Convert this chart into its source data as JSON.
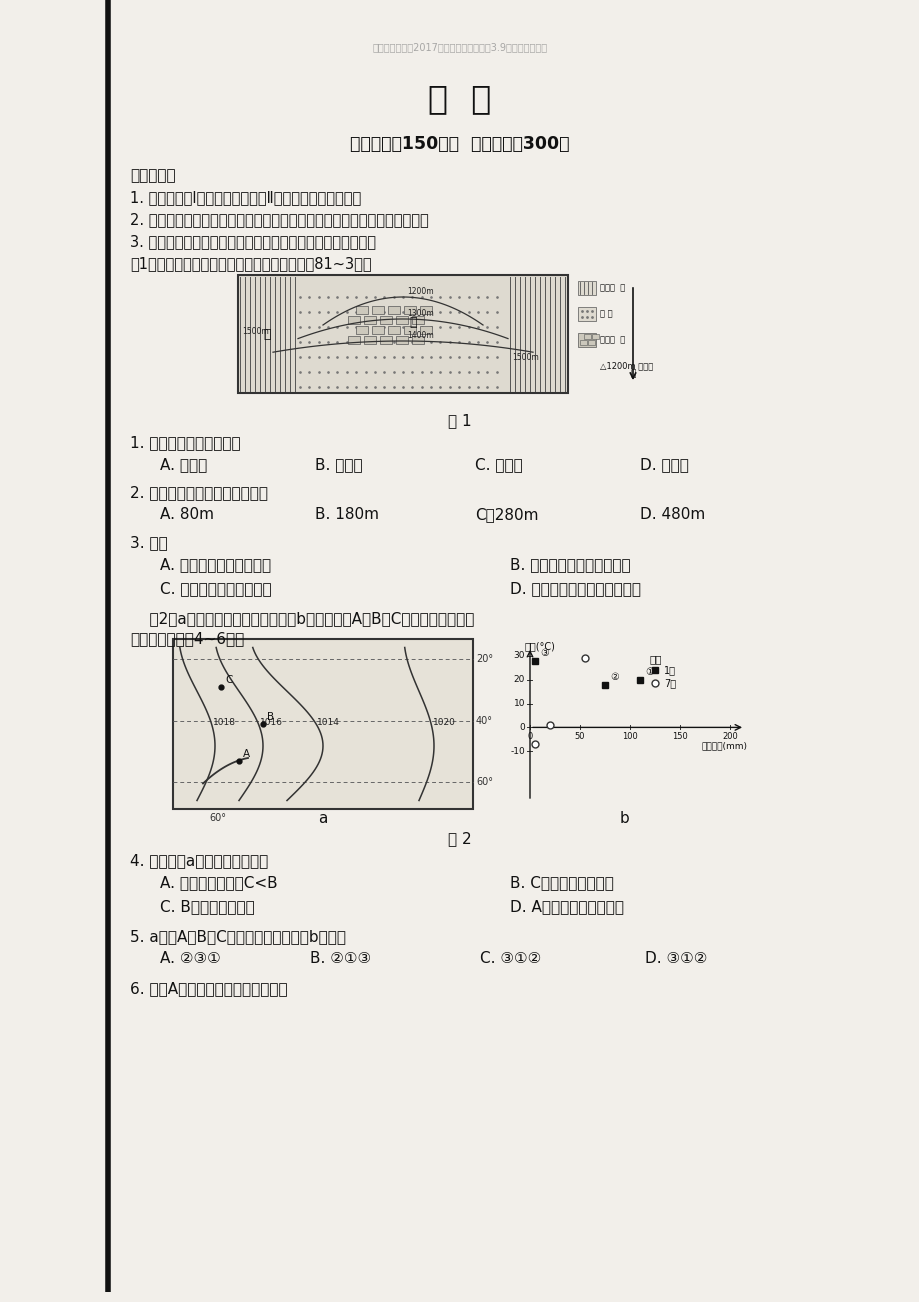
{
  "title": "文  综",
  "subtitle_faint": "四川省雅安中学2017届高三下学期周考（3.9）文科综合试题",
  "exam_info": "考试时间：150分钟  试卷满分：300分",
  "notice_title": "注意事项：",
  "notice1": "1. 本试卷分第Ⅰ卷（阅读题）和第Ⅱ卷（表达题）两部分。",
  "notice2": "2. 答卷前，考生务必将自己的姓名、准考证号填写在答题卡规定的位置上。",
  "notice3": "3. 所有题目考生必须在答题卡上作答，在试题卷上答题无效。",
  "fig1_intro": "图1是某地区岩石与等高线分布图。读图，完成81~3题。",
  "fig1_caption": "图 1",
  "q1_stem": "1. 图中甲处的地貌类型为",
  "q1_A": "A. 背斜山",
  "q1_B": "B. 向斜山",
  "q1_C": "C. 背斜谷",
  "q1_D": "D. 向斜谷",
  "q2_stem": "2. 甲、乙两地的相对高度可能为",
  "q2_A": "A. 80m",
  "q2_B": "B. 180m",
  "q2_C": "C．280m",
  "q2_D": "D. 480m",
  "q3_stem": "3. 图中",
  "q3_A": "A. 甲地可能发现地下溢洞",
  "q3_B": "B. 乙处岩石由岩浆侵入形成",
  "q3_C": "C. 甲处为良好的储油构造",
  "q3_D": "D. 夜晦时，风从甲地吹向乙地",
  "fig2_intro1": "    图2中a图为世界某区域等压线图，b图为该区域A、B、C三地年内气候资料",
  "fig2_intro2": "图，读图，回吷4~6题。",
  "fig2_caption": "图 2",
  "q4_stem": "4. 下列关于a图的说法正确的是",
  "q4_A": "A. 图中风速大小为C<B",
  "q4_B": "B. C地此时受暖锋影响",
  "q4_C": "C. B处可能吹偏南风",
  "q4_D": "D. A地可能出现降温过程",
  "q5_stem": "5. a图中A、B、C三地的气候依次对应b图中的",
  "q5_A": "A. ②③①",
  "q5_B": "B. ②①③",
  "q5_C": "C. ③①②",
  "q5_D": "D. ③①②",
  "q6_stem": "6. 影响A地自然带形成的主导因素是",
  "bg_color": "#ffffff",
  "paper_color": "#f2efea",
  "text_dark": "#111111",
  "text_gray": "#777777"
}
